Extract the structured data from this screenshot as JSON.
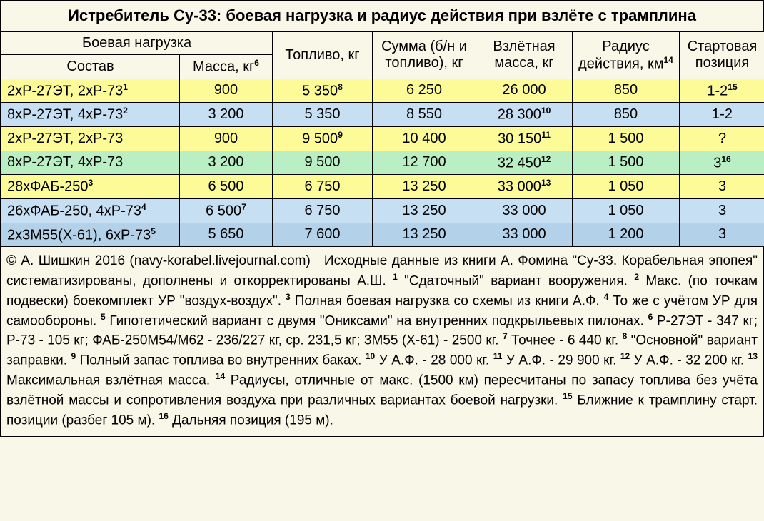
{
  "title": "Истребитель Су-33: боевая нагрузка и радиус действия при взлёте с трамплина",
  "headers": {
    "payload_group": "Боевая нагрузка",
    "composition": "Состав",
    "mass": "Масса, кг",
    "mass_sup": "6",
    "fuel": "Топливо, кг",
    "sum": "Сумма (б/н и топливо), кг",
    "takeoff_mass": "Взлётная масса, кг",
    "radius": "Радиус действия, км",
    "radius_sup": "14",
    "start_pos": "Стартовая позиция"
  },
  "rows": [
    {
      "cls": "row-yellow",
      "comp": "2хР-27ЭТ, 2хР-73",
      "comp_sup": "1",
      "mass": "900",
      "mass_sup": "",
      "fuel": "5 350",
      "fuel_sup": "8",
      "sum": "6 250",
      "tom": "26 000",
      "tom_sup": "",
      "rad": "850",
      "pos": "1-2",
      "pos_sup": "15"
    },
    {
      "cls": "row-blue",
      "comp": "8хР-27ЭТ, 4хР-73",
      "comp_sup": "2",
      "mass": "3 200",
      "mass_sup": "",
      "fuel": "5 350",
      "fuel_sup": "",
      "sum": "8 550",
      "tom": "28 300",
      "tom_sup": "10",
      "rad": "850",
      "pos": "1-2",
      "pos_sup": ""
    },
    {
      "cls": "row-yellow",
      "comp": "2хР-27ЭТ, 2хР-73",
      "comp_sup": "",
      "mass": "900",
      "mass_sup": "",
      "fuel": "9 500",
      "fuel_sup": "9",
      "sum": "10 400",
      "tom": "30 150",
      "tom_sup": "11",
      "rad": "1 500",
      "pos": "?",
      "pos_sup": ""
    },
    {
      "cls": "row-green",
      "comp": "8хР-27ЭТ, 4хР-73",
      "comp_sup": "",
      "mass": "3 200",
      "mass_sup": "",
      "fuel": "9 500",
      "fuel_sup": "",
      "sum": "12 700",
      "tom": "32 450",
      "tom_sup": "12",
      "rad": "1 500",
      "pos": "3",
      "pos_sup": "16"
    },
    {
      "cls": "row-yellow",
      "comp": "28хФАБ-250",
      "comp_sup": "3",
      "mass": "6 500",
      "mass_sup": "",
      "fuel": "6 750",
      "fuel_sup": "",
      "sum": "13 250",
      "tom": "33 000",
      "tom_sup": "13",
      "rad": "1 050",
      "pos": "3",
      "pos_sup": ""
    },
    {
      "cls": "row-blue",
      "comp": "26хФАБ-250, 4хР-73",
      "comp_sup": "4",
      "mass": "6 500",
      "mass_sup": "7",
      "fuel": "6 750",
      "fuel_sup": "",
      "sum": "13 250",
      "tom": "33 000",
      "tom_sup": "",
      "rad": "1 050",
      "pos": "3",
      "pos_sup": ""
    },
    {
      "cls": "row-blue2",
      "comp": "2х3М55(Х-61), 6хР-73",
      "comp_sup": "5",
      "mass": "5 650",
      "mass_sup": "",
      "fuel": "7 600",
      "fuel_sup": "",
      "sum": "13 250",
      "tom": "33 000",
      "tom_sup": "",
      "rad": "1 200",
      "pos": "3",
      "pos_sup": ""
    }
  ],
  "notes_html": "© А. Шишкин 2016 (navy-korabel.livejournal.com)&nbsp;&nbsp;&nbsp;Исходные данные из книги А. Фомина \"Су-33. Кора­бельная эпопея\" систематизированы, дополнены и откорректированы А.Ш. <sup>1</sup> \"Сдаточный\" вариант вооружения. <sup>2</sup> Макс. (по точкам подвески) боекомплект УР \"воздух-воздух\". <sup>3</sup> Полная боевая нагрузка со схемы из книги А.Ф. <sup>4</sup> То же с учётом УР для самообороны. <sup>5</sup> Гипотетический вариант с двумя \"Ониксами\" на внутренних подкрылье­вых пилонах. <sup>6</sup> Р-27ЭТ - 347 кг; Р-73 - 105 кг; ФАБ-250М54/М62 - 236/227 кг, ср. 231,5 кг; 3М55 (Х-61) - 2500 кг. <sup>7</sup> Точнее - 6 440 кг. <sup>8</sup> \"Основной\" вариант заправки. <sup>9</sup> Полный запас топлива во внутренних баках. <sup>10</sup> У А.Ф. - 28 000 кг. <sup>11</sup> У А.Ф. - 29 900 кг. <sup>12</sup> У А.Ф. - 32 200 кг. <sup>13</sup> Максимальная взлётная масса. <sup>14</sup> Радиусы, отличные от макс. (1500 км) пересчитаны по запасу топлива без учёта взлётной массы и сопротивления воздуха при различных вариантах боевой нагрузки. <sup>15</sup> Ближние к трамплину старт. позиции (разбег 105 м). <sup>16</sup> Дальняя позиция (195 м).",
  "colors": {
    "bg": "#f9f7e8",
    "yellow": "#fcfb98",
    "blue": "#c7dff2",
    "green": "#b9efc3",
    "blue2": "#b3d1e8",
    "border": "#000000"
  }
}
